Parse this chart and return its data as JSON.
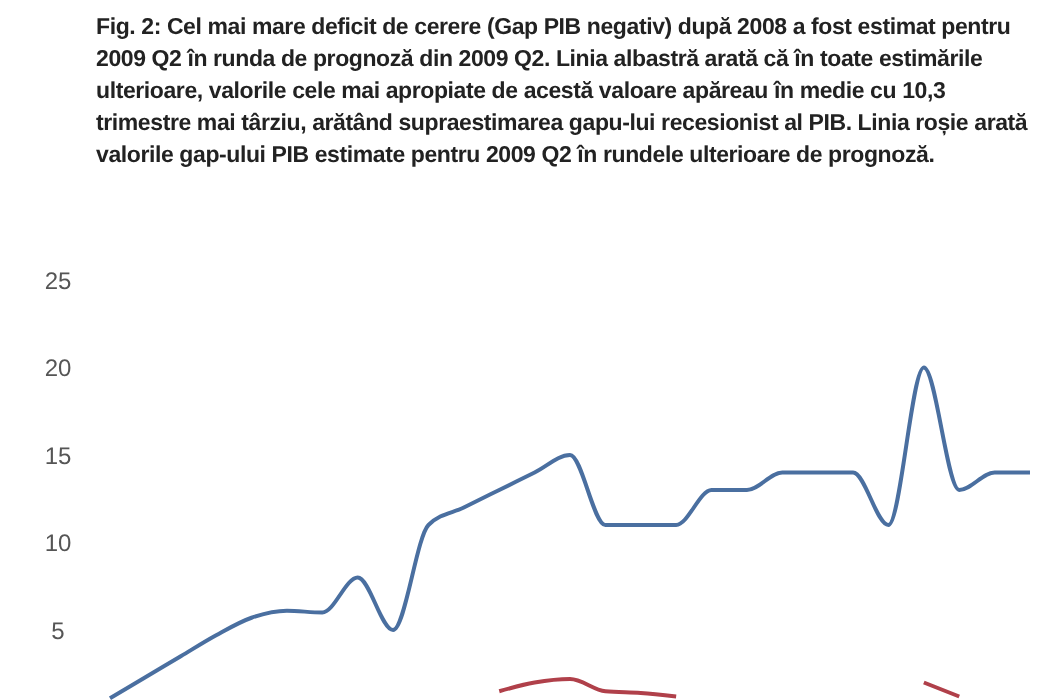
{
  "chart_data": {
    "type": "line",
    "title": "Fig. 2: Cel mai mare deficit de cerere (Gap PIB negativ) după 2008 a fost estimat pentru 2009 Q2 în runda de prognoză din 2009 Q2. Linia albastră arată că în toate estimările ulterioare, valorile cele mai apropiate de acestă valoare apăreau în medie cu 10,3 trimestre mai târziu, arătând supraestimarea gapu-lui recesionist al PIB. Linia roșie arată valorile gap-ului PIB estimate pentru 2009 Q2 în rundele ulterioare de prognoză.",
    "categories": [
      null,
      null,
      null,
      null,
      null,
      null,
      null,
      null,
      null,
      null,
      null,
      null,
      null,
      null,
      null,
      null,
      null,
      null,
      null,
      null,
      null,
      null,
      null,
      null,
      null,
      null,
      null
    ],
    "series": [
      {
        "color": "#4a6fa0",
        "values": [
          1.1,
          2.3,
          3.5,
          4.7,
          5.7,
          6.1,
          6,
          8,
          5,
          11,
          12,
          13,
          14,
          15,
          11,
          11,
          11,
          13,
          13,
          14,
          14,
          14,
          11,
          20,
          13,
          14,
          14
        ]
      },
      {
        "color": "#b0404a",
        "values": [
          null,
          null,
          null,
          null,
          null,
          null,
          null,
          null,
          null,
          null,
          null,
          1.5,
          2,
          2.2,
          1.5,
          1.4,
          1.2,
          null,
          null,
          null,
          null,
          null,
          null,
          2,
          1.2,
          null,
          null
        ]
      }
    ],
    "ylim": [
      1,
      25
    ],
    "yticks": [
      5,
      10,
      15,
      20,
      25
    ],
    "tick_labels": "y",
    "grid": false,
    "legend": false,
    "marker": "none",
    "line_style": "solid"
  }
}
